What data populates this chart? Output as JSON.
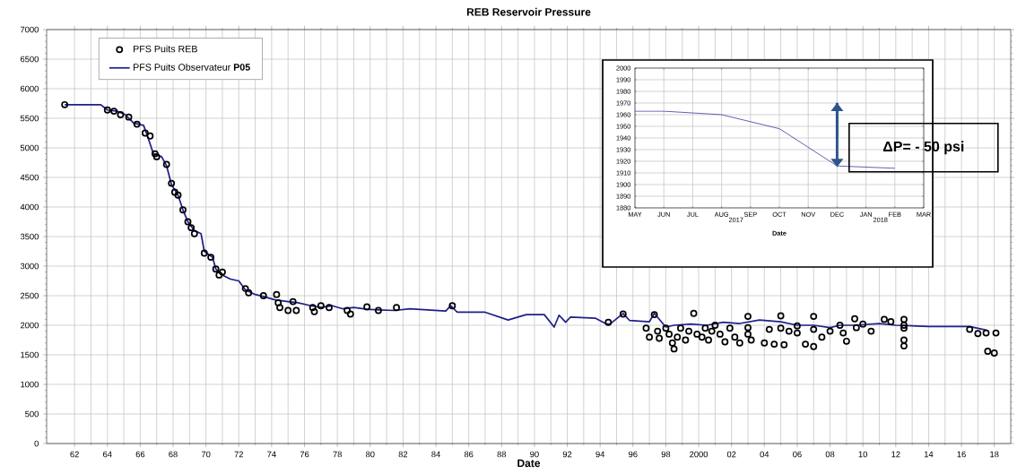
{
  "chart_data": [
    {
      "type": "line",
      "title": "REB Reservoir Pressure",
      "xlabel": "Date",
      "xlim": [
        1960.3,
        2019
      ],
      "ylim": [
        0,
        7000
      ],
      "xticks": [
        {
          "value": 1962,
          "label": "62"
        },
        {
          "value": 1964,
          "label": "64"
        },
        {
          "value": 1966,
          "label": "66"
        },
        {
          "value": 1968,
          "label": "68"
        },
        {
          "value": 1970,
          "label": "70"
        },
        {
          "value": 1972,
          "label": "72"
        },
        {
          "value": 1974,
          "label": "74"
        },
        {
          "value": 1976,
          "label": "76"
        },
        {
          "value": 1978,
          "label": "78"
        },
        {
          "value": 1980,
          "label": "80"
        },
        {
          "value": 1982,
          "label": "82"
        },
        {
          "value": 1984,
          "label": "84"
        },
        {
          "value": 1986,
          "label": "86"
        },
        {
          "value": 1988,
          "label": "88"
        },
        {
          "value": 1990,
          "label": "90"
        },
        {
          "value": 1992,
          "label": "92"
        },
        {
          "value": 1994,
          "label": "94"
        },
        {
          "value": 1996,
          "label": "96"
        },
        {
          "value": 1998,
          "label": "98"
        },
        {
          "value": 2000,
          "label": "2000"
        },
        {
          "value": 2002,
          "label": "02"
        },
        {
          "value": 2004,
          "label": "04"
        },
        {
          "value": 2006,
          "label": "06"
        },
        {
          "value": 2008,
          "label": "08"
        },
        {
          "value": 2010,
          "label": "10"
        },
        {
          "value": 2012,
          "label": "12"
        },
        {
          "value": 2014,
          "label": "14"
        },
        {
          "value": 2016,
          "label": "16"
        },
        {
          "value": 2018,
          "label": "18"
        }
      ],
      "yticks": [
        0,
        500,
        1000,
        1500,
        2000,
        2500,
        3000,
        3500,
        4000,
        4500,
        5000,
        5500,
        6000,
        6500,
        7000
      ],
      "grid": true,
      "legend": "top left",
      "series": [
        {
          "name": "PFS Puits REB",
          "type": "scatter",
          "marker": "circle",
          "color": "#000000",
          "x": [
            1961.4,
            1964.0,
            1964.4,
            1964.8,
            1965.3,
            1965.8,
            1966.3,
            1966.6,
            1966.9,
            1967.0,
            1967.6,
            1967.9,
            1968.1,
            1968.3,
            1968.6,
            1968.9,
            1969.1,
            1969.3,
            1969.9,
            1970.3,
            1970.6,
            1970.8,
            1971.0,
            1972.4,
            1972.6,
            1973.5,
            1974.3,
            1974.4,
            1974.5,
            1975.0,
            1975.3,
            1975.5,
            1976.5,
            1976.6,
            1977.0,
            1977.5,
            1978.6,
            1978.8,
            1979.8,
            1980.5,
            1981.6,
            1985.0,
            1994.5,
            1995.4,
            1996.8,
            1997.0,
            1997.3,
            1997.5,
            1997.6,
            1998.0,
            1998.2,
            1998.4,
            1998.5,
            1998.7,
            1998.9,
            1999.2,
            1999.4,
            1999.7,
            1999.9,
            2000.2,
            2000.4,
            2000.6,
            2000.8,
            2001.0,
            2001.3,
            2001.6,
            2001.9,
            2002.2,
            2002.5,
            2003.0,
            2003.0,
            2003.0,
            2003.2,
            2004.0,
            2004.3,
            2004.6,
            2005.0,
            2005.0,
            2005.2,
            2005.5,
            2006.0,
            2006.0,
            2006.5,
            2007.0,
            2007.0,
            2007.0,
            2007.5,
            2008.0,
            2008.6,
            2008.8,
            2009.0,
            2009.5,
            2009.6,
            2010.0,
            2010.5,
            2011.3,
            2011.7,
            2012.5,
            2012.5,
            2012.5,
            2012.5,
            2012.5,
            2016.5,
            2017.0,
            2017.5,
            2017.6,
            2018.0,
            2018.1
          ],
          "values": [
            5730,
            5640,
            5620,
            5560,
            5520,
            5400,
            5250,
            5200,
            4900,
            4850,
            4720,
            4400,
            4250,
            4200,
            3950,
            3750,
            3650,
            3550,
            3220,
            3150,
            2950,
            2850,
            2900,
            2620,
            2550,
            2500,
            2520,
            2380,
            2300,
            2250,
            2400,
            2250,
            2300,
            2230,
            2330,
            2300,
            2250,
            2190,
            2310,
            2250,
            2300,
            2330,
            2050,
            2190,
            1950,
            1800,
            2180,
            1900,
            1780,
            1950,
            1850,
            1700,
            1600,
            1800,
            1950,
            1750,
            1900,
            2200,
            1850,
            1800,
            1950,
            1750,
            1900,
            2000,
            1850,
            1720,
            1950,
            1800,
            1700,
            2150,
            1850,
            1960,
            1750,
            1700,
            1930,
            1680,
            2160,
            1950,
            1670,
            1900,
            1870,
            1990,
            1680,
            2150,
            1930,
            1640,
            1800,
            1900,
            2000,
            1870,
            1730,
            2110,
            1960,
            2020,
            1900,
            2100,
            2060,
            2100,
            2000,
            1950,
            1750,
            1650,
            1930,
            1860,
            1870,
            1560,
            1530,
            1870
          ]
        },
        {
          "name": "PFS Puits Observateur **P05**",
          "type": "line",
          "color": "#1f1f8c",
          "x": [
            1961.4,
            1963.6,
            1964.0,
            1964.6,
            1965.1,
            1965.6,
            1966.2,
            1966.4,
            1966.8,
            1967.3,
            1967.6,
            1967.9,
            1968.3,
            1968.6,
            1968.9,
            1969.3,
            1969.7,
            1969.9,
            1970.4,
            1970.6,
            1971.0,
            1971.5,
            1972.0,
            1972.4,
            1973.0,
            1973.6,
            1974.2,
            1975.0,
            1975.6,
            1976.4,
            1977.0,
            1977.7,
            1978.3,
            1979.0,
            1979.8,
            1980.5,
            1981.5,
            1982.4,
            1983.5,
            1984.6,
            1984.9,
            1985.3,
            1987.0,
            1988.4,
            1989.5,
            1990.6,
            1991.2,
            1991.5,
            1991.9,
            1992.2,
            1993.7,
            1994.4,
            1994.6,
            1995.4,
            1995.8,
            1997.0,
            1997.3,
            1998.0,
            1998.5,
            1999.5,
            2000.5,
            2001.5,
            2002.5,
            2003.7,
            2005.0,
            2006.0,
            2007.0,
            2008.0,
            2008.6,
            2009.5,
            2011.0,
            2012.0,
            2014.0,
            2016.5,
            2017.5
          ],
          "values": [
            5730,
            5730,
            5640,
            5620,
            5560,
            5420,
            5380,
            5230,
            4900,
            4850,
            4700,
            4380,
            4200,
            3950,
            3750,
            3600,
            3550,
            3250,
            3150,
            2950,
            2850,
            2780,
            2750,
            2600,
            2520,
            2480,
            2430,
            2400,
            2380,
            2330,
            2300,
            2330,
            2280,
            2300,
            2270,
            2260,
            2250,
            2280,
            2260,
            2240,
            2330,
            2220,
            2220,
            2090,
            2180,
            2180,
            1970,
            2170,
            2050,
            2140,
            2120,
            2020,
            2020,
            2200,
            2080,
            2060,
            2200,
            1970,
            2000,
            2020,
            2000,
            2050,
            2030,
            2090,
            2060,
            2000,
            2000,
            1960,
            2000,
            2000,
            2030,
            2000,
            1980,
            1980,
            1920
          ]
        }
      ]
    },
    {
      "type": "line",
      "xlabel": "Date",
      "categories": [
        "MAY",
        "JUN",
        "JUL",
        "AUG",
        "SEP",
        "OCT",
        "NOV",
        "DEC",
        "JAN",
        "FEB",
        "MAR"
      ],
      "ylim": [
        1880,
        2000
      ],
      "yticks": [
        1880,
        1890,
        1900,
        1910,
        1920,
        1930,
        1940,
        1950,
        1960,
        1970,
        1980,
        1990,
        2000
      ],
      "grid": true,
      "annotations": [
        "ΔP= - 50 psi",
        "2017",
        "2018"
      ],
      "series": [
        {
          "color": "#3a3a9a",
          "values": [
            1963,
            1963,
            null,
            1960,
            null,
            1948,
            null,
            1916,
            1915,
            1914,
            null
          ]
        }
      ]
    }
  ]
}
